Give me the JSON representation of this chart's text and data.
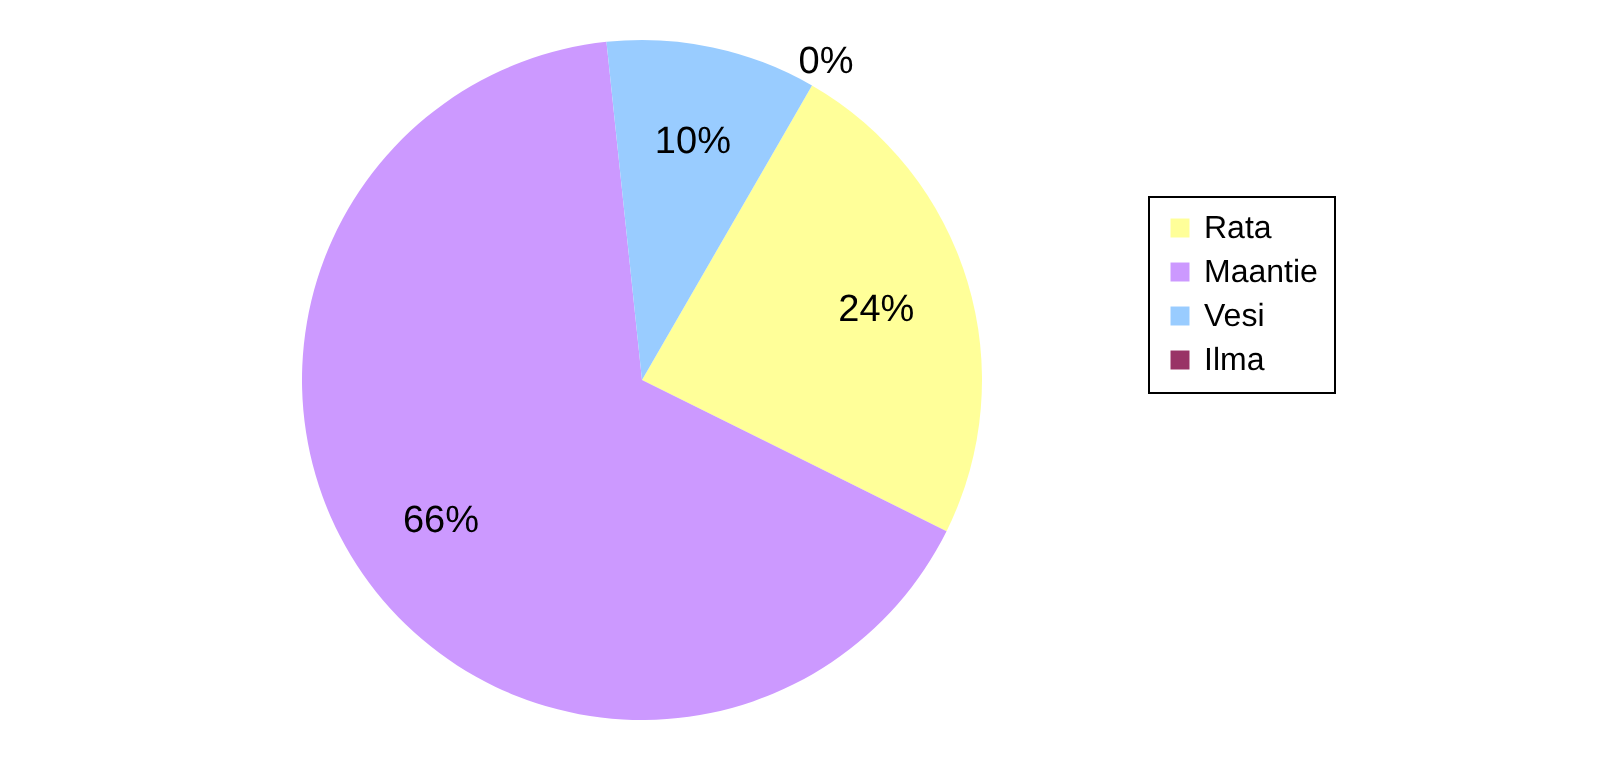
{
  "chart_data": {
    "type": "pie",
    "categories": [
      "Rata",
      "Maantie",
      "Vesi",
      "Ilma"
    ],
    "values": [
      24,
      66,
      10,
      0
    ],
    "colors": [
      "#ffff99",
      "#cc99ff",
      "#99ccff",
      "#993366"
    ],
    "value_labels": [
      "24%",
      "66%",
      "10%",
      "0%"
    ],
    "legend": "right"
  }
}
